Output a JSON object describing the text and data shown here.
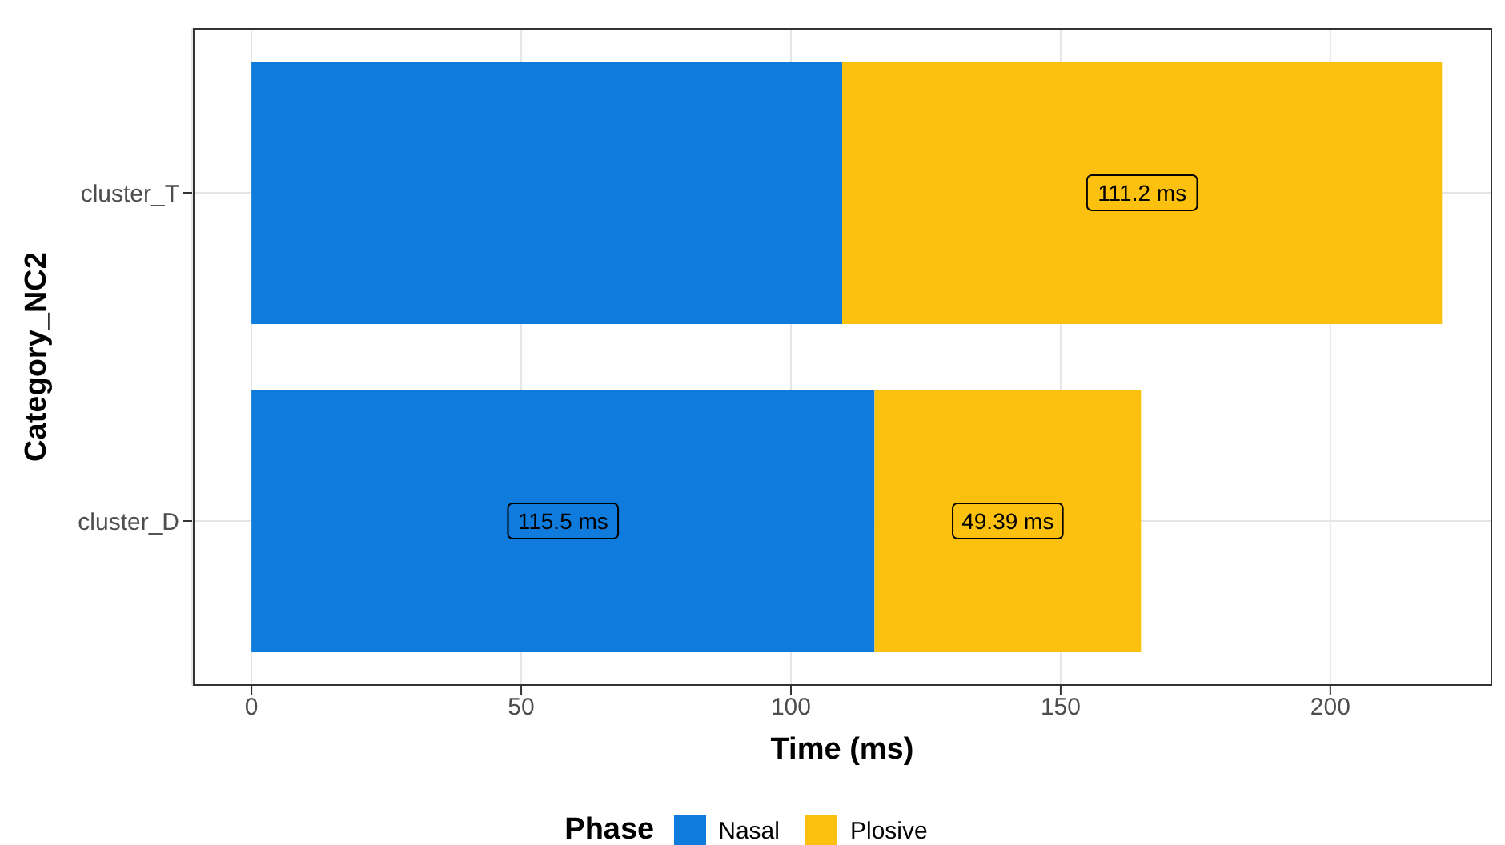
{
  "chart_data": {
    "type": "bar",
    "orientation": "horizontal",
    "stacked": true,
    "xlabel": "Time (ms)",
    "ylabel": "Category_NC2",
    "legend_title": "Phase",
    "categories": [
      "cluster_T",
      "cluster_D"
    ],
    "series": [
      {
        "name": "Nasal",
        "color": "#0f7bdc",
        "values": [
          109.5,
          115.5
        ],
        "value_labels": [
          null,
          "115.5 ms"
        ]
      },
      {
        "name": "Plosive",
        "color": "#fcc00f",
        "values": [
          111.2,
          49.39
        ],
        "value_labels": [
          "111.2 ms",
          "49.39 ms"
        ]
      }
    ],
    "xlim": [
      -11,
      230
    ],
    "xticks": [
      0,
      50,
      100,
      150,
      200
    ],
    "grid": true,
    "legend": "bottom"
  }
}
